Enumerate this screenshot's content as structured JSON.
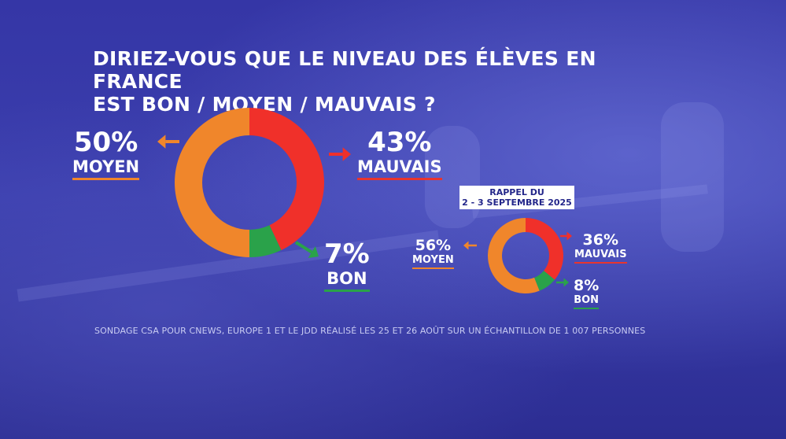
{
  "title": {
    "line1": "DIRIEZ-VOUS QUE LE NIVEAU DES ÉLÈVES EN FRANCE",
    "line2": "EST BON / MOYEN / MAUVAIS ?"
  },
  "colors": {
    "moyen": "#f0862b",
    "mauvais": "#f0302a",
    "bon": "#2aa24a",
    "background": "#3536a6"
  },
  "chart_data": [
    {
      "type": "pie",
      "style": "donut",
      "slices": [
        {
          "label": "MOYEN",
          "value": 50,
          "display": "50%"
        },
        {
          "label": "MAUVAIS",
          "value": 43,
          "display": "43%"
        },
        {
          "label": "BON",
          "value": 7,
          "display": "7%"
        }
      ]
    },
    {
      "type": "pie",
      "style": "donut",
      "title": "RAPPEL DU 2 - 3 SEPTEMBRE 2025",
      "title_line1": "RAPPEL DU",
      "title_line2": "2 - 3 SEPTEMBRE 2025",
      "slices": [
        {
          "label": "MOYEN",
          "value": 56,
          "display": "56%"
        },
        {
          "label": "MAUVAIS",
          "value": 36,
          "display": "36%"
        },
        {
          "label": "BON",
          "value": 8,
          "display": "8%"
        }
      ]
    }
  ],
  "source": "SONDAGE CSA POUR CNEWS, EUROPE 1 ET LE JDD RÉALISÉ LES 25 ET 26 AOÛT SUR UN ÉCHANTILLON DE 1 007 PERSONNES"
}
